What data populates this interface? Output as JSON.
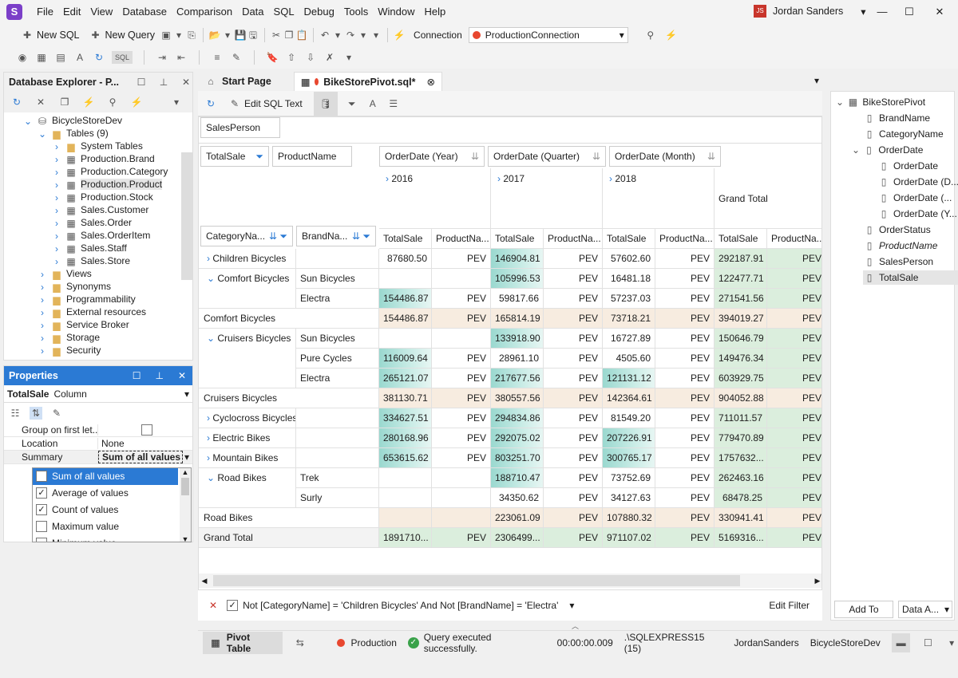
{
  "menu": [
    "File",
    "Edit",
    "View",
    "Database",
    "Comparison",
    "Data",
    "SQL",
    "Debug",
    "Tools",
    "Window",
    "Help"
  ],
  "user": {
    "initials": "JS",
    "name": "Jordan Sanders"
  },
  "toolbar": {
    "new_sql": "New SQL",
    "new_query": "New Query",
    "connection_label": "Connection",
    "connection_value": "ProductionConnection"
  },
  "explorer": {
    "title": "Database Explorer - P...",
    "db": "BicycleStoreDev",
    "tables_label": "Tables (9)",
    "tables": [
      "System Tables",
      "Production.Brand",
      "Production.Category",
      "Production.Product",
      "Production.Stock",
      "Sales.Customer",
      "Sales.Order",
      "Sales.OrderItem",
      "Sales.Staff",
      "Sales.Store"
    ],
    "folders": [
      "Views",
      "Synonyms",
      "Programmability",
      "External resources",
      "Service Broker",
      "Storage",
      "Security"
    ]
  },
  "properties": {
    "title": "Properties",
    "object": "TotalSale",
    "object_type": "Column",
    "rows": [
      {
        "k": "Group on first let...",
        "v": ""
      },
      {
        "k": "Location",
        "v": "None"
      },
      {
        "k": "Summary",
        "v": "Sum of all values"
      }
    ],
    "dropdown": [
      {
        "label": "Sum of all values",
        "checked": true
      },
      {
        "label": "Average of values",
        "checked": true
      },
      {
        "label": "Count of values",
        "checked": true
      },
      {
        "label": "Maximum value",
        "checked": false
      },
      {
        "label": "Minimum value",
        "checked": false
      }
    ]
  },
  "tabs": {
    "start": "Start Page",
    "doc": "BikeStorePivot.sql*"
  },
  "pivot_toolbar": {
    "edit_sql": "Edit SQL Text"
  },
  "pivot": {
    "filter_field": "SalesPerson",
    "data_field": "TotalSale",
    "data_field2": "ProductName",
    "col_fields": [
      "OrderDate (Year)",
      "OrderDate (Quarter)",
      "OrderDate (Month)"
    ],
    "row_fields": [
      "CategoryNa...",
      "BrandNa..."
    ],
    "years": [
      "2016",
      "2017",
      "2018"
    ],
    "grand_total": "Grand Total",
    "measure_headers": [
      "TotalSale",
      "ProductNa...",
      "TotalSale",
      "ProductNa...",
      "TotalSale",
      "ProductNa...",
      "TotalSale",
      "ProductNa..."
    ],
    "rows": [
      {
        "cat": "Children Bicycles",
        "brand": "",
        "exp": "›",
        "style": "",
        "v": [
          "87680.50",
          "PEV",
          "146904.81",
          "PEV",
          "57602.60",
          "PEV",
          "292187.91",
          "PEV"
        ],
        "hl": [
          2
        ]
      },
      {
        "cat": "Comfort Bicycles",
        "brand": "Sun Bicycles",
        "exp": "⌄",
        "style": "",
        "v": [
          "",
          "",
          "105996.53",
          "PEV",
          "16481.18",
          "PEV",
          "122477.71",
          "PEV"
        ],
        "hl": [
          2
        ]
      },
      {
        "cat": "",
        "brand": "Electra",
        "exp": "",
        "style": "",
        "v": [
          "154486.87",
          "PEV",
          "59817.66",
          "PEV",
          "57237.03",
          "PEV",
          "271541.56",
          "PEV"
        ],
        "hl": [
          0
        ]
      },
      {
        "cat": "Comfort Bicycles",
        "brand": "",
        "exp": "",
        "style": "total",
        "v": [
          "154486.87",
          "PEV",
          "165814.19",
          "PEV",
          "73718.21",
          "PEV",
          "394019.27",
          "PEV"
        ],
        "hl": []
      },
      {
        "cat": "Cruisers Bicycles",
        "brand": "Sun Bicycles",
        "exp": "⌄",
        "style": "",
        "v": [
          "",
          "",
          "133918.90",
          "PEV",
          "16727.89",
          "PEV",
          "150646.79",
          "PEV"
        ],
        "hl": [
          2
        ]
      },
      {
        "cat": "",
        "brand": "Pure Cycles",
        "exp": "",
        "style": "",
        "v": [
          "116009.64",
          "PEV",
          "28961.10",
          "PEV",
          "4505.60",
          "PEV",
          "149476.34",
          "PEV"
        ],
        "hl": [
          0
        ]
      },
      {
        "cat": "",
        "brand": "Electra",
        "exp": "",
        "style": "",
        "v": [
          "265121.07",
          "PEV",
          "217677.56",
          "PEV",
          "121131.12",
          "PEV",
          "603929.75",
          "PEV"
        ],
        "hl": [
          0,
          2,
          4
        ]
      },
      {
        "cat": "Cruisers Bicycles",
        "brand": "",
        "exp": "",
        "style": "total",
        "v": [
          "381130.71",
          "PEV",
          "380557.56",
          "PEV",
          "142364.61",
          "PEV",
          "904052.88",
          "PEV"
        ],
        "hl": []
      },
      {
        "cat": "Cyclocross Bicycles",
        "brand": "",
        "exp": "›",
        "style": "",
        "v": [
          "334627.51",
          "PEV",
          "294834.86",
          "PEV",
          "81549.20",
          "PEV",
          "711011.57",
          "PEV"
        ],
        "hl": [
          0,
          2
        ]
      },
      {
        "cat": "Electric Bikes",
        "brand": "",
        "exp": "›",
        "style": "",
        "v": [
          "280168.96",
          "PEV",
          "292075.02",
          "PEV",
          "207226.91",
          "PEV",
          "779470.89",
          "PEV"
        ],
        "hl": [
          0,
          2,
          4
        ]
      },
      {
        "cat": "Mountain Bikes",
        "brand": "",
        "exp": "›",
        "style": "",
        "v": [
          "653615.62",
          "PEV",
          "803251.70",
          "PEV",
          "300765.17",
          "PEV",
          "1757632...",
          "PEV"
        ],
        "hl": [
          0,
          2,
          4
        ]
      },
      {
        "cat": "Road Bikes",
        "brand": "Trek",
        "exp": "⌄",
        "style": "",
        "v": [
          "",
          "",
          "188710.47",
          "PEV",
          "73752.69",
          "PEV",
          "262463.16",
          "PEV"
        ],
        "hl": [
          2
        ]
      },
      {
        "cat": "",
        "brand": "Surly",
        "exp": "",
        "style": "",
        "v": [
          "",
          "",
          "34350.62",
          "PEV",
          "34127.63",
          "PEV",
          "68478.25",
          "PEV"
        ],
        "hl": []
      },
      {
        "cat": "Road Bikes",
        "brand": "",
        "exp": "",
        "style": "total",
        "v": [
          "",
          "",
          "223061.09",
          "PEV",
          "107880.32",
          "PEV",
          "330941.41",
          "PEV"
        ],
        "hl": []
      },
      {
        "cat": "Grand Total",
        "brand": "",
        "exp": "",
        "style": "grand",
        "v": [
          "1891710...",
          "PEV",
          "2306499...",
          "PEV",
          "971107.02",
          "PEV",
          "5169316...",
          "PEV"
        ],
        "hl": []
      }
    ]
  },
  "filter": {
    "text": "Not [CategoryName] = 'Children Bicycles' And Not [BrandName] = 'Electra'",
    "edit": "Edit Filter"
  },
  "status": {
    "view": "Pivot Table",
    "conn": "Production",
    "msg": "Query executed successfully.",
    "time": "00:00:00.009",
    "server": ".\\SQLEXPRESS15 (15)",
    "user": "JordanSanders",
    "db": "BicycleStoreDev"
  },
  "fieldlist": {
    "root": "BikeStorePivot",
    "items": [
      "BrandName",
      "CategoryName",
      "OrderDate"
    ],
    "sub": [
      "OrderDate",
      "OrderDate (D...",
      "OrderDate (...",
      "OrderDate (Y..."
    ],
    "items2": [
      "OrderStatus",
      "ProductName",
      "SalesPerson",
      "TotalSale"
    ],
    "add_to": "Add To",
    "data_area": "Data A..."
  }
}
